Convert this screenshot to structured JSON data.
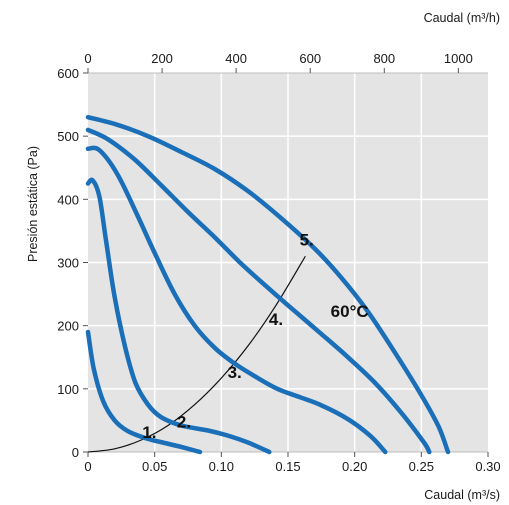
{
  "chart_data": {
    "type": "line",
    "title": "",
    "xlabel": "Caudal (m³/s)",
    "ylabel": "Presión estática (Pa)",
    "x2label": "Caudal (m³/h)",
    "xlim": [
      0,
      0.3
    ],
    "ylim": [
      0,
      600
    ],
    "x2lim": [
      0,
      1080
    ],
    "x_ticks": [
      "0",
      "0.05",
      "0.10",
      "0.15",
      "0.20",
      "0.25",
      "0.30"
    ],
    "x_tick_values": [
      0,
      0.05,
      0.1,
      0.15,
      0.2,
      0.25,
      0.3
    ],
    "y_ticks": [
      "0",
      "100",
      "200",
      "300",
      "400",
      "500",
      "600"
    ],
    "y_tick_values": [
      0,
      100,
      200,
      300,
      400,
      500,
      600
    ],
    "x2_ticks": [
      "0",
      "200",
      "400",
      "600",
      "800",
      "1000"
    ],
    "x2_tick_values": [
      0,
      200,
      400,
      600,
      800,
      1000
    ],
    "grid": true,
    "background": "#e4e4e4",
    "grid_color": "#ffffff",
    "curve_color": "#1a6fb8",
    "system_curve_color": "#111111",
    "series": [
      {
        "name": "1.",
        "x": [
          0.0,
          0.0045,
          0.0115,
          0.02,
          0.03,
          0.043,
          0.056,
          0.07,
          0.084
        ],
        "y": [
          190,
          130,
          80,
          50,
          33,
          22,
          15,
          8,
          0
        ]
      },
      {
        "name": "2.",
        "x": [
          0.0,
          0.0035,
          0.0085,
          0.0135,
          0.02,
          0.028,
          0.0355,
          0.045,
          0.055,
          0.07,
          0.09,
          0.105,
          0.12,
          0.136
        ],
        "y": [
          425,
          430,
          405,
          335,
          245,
          165,
          110,
          75,
          55,
          42,
          34,
          26,
          15,
          0
        ]
      },
      {
        "name": "3.",
        "x": [
          0.0,
          0.0085,
          0.022,
          0.037,
          0.05,
          0.065,
          0.08,
          0.095,
          0.11,
          0.125,
          0.142,
          0.16,
          0.175,
          0.195,
          0.212,
          0.223
        ],
        "y": [
          480,
          478,
          440,
          375,
          315,
          250,
          200,
          165,
          140,
          120,
          100,
          86,
          74,
          52,
          25,
          0
        ]
      },
      {
        "name": "4.",
        "x": [
          0.0,
          0.015,
          0.035,
          0.055,
          0.075,
          0.095,
          0.115,
          0.135,
          0.155,
          0.175,
          0.195,
          0.215,
          0.235,
          0.252,
          0.256
        ],
        "y": [
          510,
          495,
          463,
          422,
          380,
          340,
          298,
          260,
          223,
          187,
          150,
          110,
          62,
          15,
          0
        ]
      },
      {
        "name": "5.",
        "x": [
          0.0,
          0.022,
          0.045,
          0.07,
          0.095,
          0.12,
          0.145,
          0.17,
          0.19,
          0.21,
          0.23,
          0.25,
          0.263,
          0.27
        ],
        "y": [
          530,
          518,
          500,
          475,
          448,
          413,
          370,
          322,
          276,
          222,
          158,
          90,
          40,
          0
        ]
      }
    ],
    "system_curve": {
      "x": [
        0.0,
        0.02,
        0.04,
        0.06,
        0.08,
        0.1,
        0.12,
        0.14,
        0.16,
        0.163
      ],
      "y": [
        0,
        5,
        19,
        42,
        75,
        117,
        168,
        229,
        299,
        310
      ]
    },
    "curve_labels": [
      {
        "text": "1.",
        "x": 0.046,
        "y": 22
      },
      {
        "text": "2.",
        "x": 0.072,
        "y": 39
      },
      {
        "text": "3.",
        "x": 0.11,
        "y": 117
      },
      {
        "text": "4.",
        "x": 0.141,
        "y": 201
      },
      {
        "text": "5.",
        "x": 0.164,
        "y": 327
      }
    ],
    "annotation": {
      "text": "60°C",
      "x": 0.182,
      "y": 214
    }
  }
}
